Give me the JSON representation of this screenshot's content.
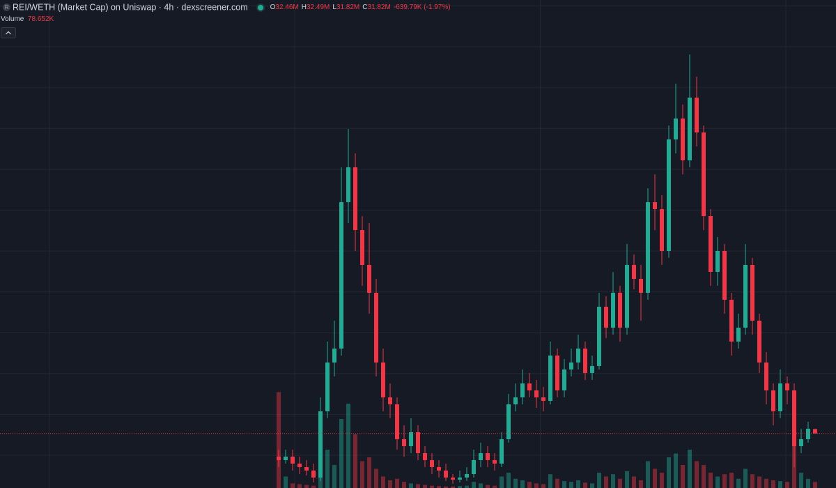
{
  "chart_data": {
    "type": "candlestick",
    "title": "REI/WETH (Market Cap) on Uniswap · 4h · dexscreener.com",
    "token_icon": "R",
    "ohlc_legend": [
      {
        "key": "O",
        "value": "32.46M"
      },
      {
        "key": "H",
        "value": "32.49M"
      },
      {
        "key": "L",
        "value": "31.82M"
      },
      {
        "key": "C",
        "value": "31.82M"
      }
    ],
    "change": "-639.79K (-1.97%)",
    "volume_title": "Volume",
    "volume_label": "78.652K",
    "open": [
      28.5,
      28,
      28.5,
      27.5,
      27,
      26.5,
      25.5,
      35,
      42,
      44,
      65,
      70,
      61,
      56,
      52,
      42,
      37,
      36,
      31,
      30,
      32,
      29,
      28,
      27,
      26.5,
      25.5,
      25.2,
      25.5,
      26,
      28,
      29,
      28,
      27.5,
      31,
      36,
      37,
      39,
      38,
      37,
      36.5,
      43,
      38,
      41,
      42,
      44,
      40.5,
      41.5,
      50,
      47,
      52,
      47,
      56,
      54,
      52,
      65,
      64,
      58,
      74,
      77,
      71,
      80,
      75,
      63,
      55,
      58,
      51,
      45,
      47,
      56,
      48,
      42,
      38,
      35,
      39,
      38,
      30,
      31,
      32.46
    ],
    "high": [
      29.5,
      29.5,
      29.5,
      28.5,
      28,
      27.5,
      37,
      45,
      48,
      70,
      75.5,
      72,
      63,
      62,
      54,
      44,
      39,
      37,
      33,
      34,
      33,
      30,
      29,
      28,
      27.5,
      26,
      26.5,
      27,
      29.5,
      30.5,
      30,
      29,
      32,
      37.5,
      39,
      41,
      40.5,
      39.5,
      38.5,
      45,
      44,
      42.5,
      44,
      46,
      45,
      43,
      52,
      51.5,
      55,
      53,
      59,
      57.5,
      56,
      67,
      69,
      66,
      76,
      82,
      79,
      86.2,
      83,
      76,
      64,
      60,
      59,
      52,
      49,
      59,
      57,
      49,
      43.5,
      39,
      41,
      40,
      39,
      32.5,
      33.5,
      32.49
    ],
    "low": [
      27,
      27.5,
      26.5,
      26,
      25.8,
      24.8,
      25,
      34,
      40,
      43,
      62,
      58,
      53,
      49,
      40,
      35,
      34,
      29.5,
      28.5,
      29,
      28,
      27,
      26,
      25.5,
      25,
      24.6,
      24.8,
      25,
      25.5,
      27,
      27,
      26.5,
      27,
      30.5,
      35,
      36,
      37,
      35.5,
      35,
      36,
      37,
      37,
      40,
      41,
      39.5,
      39.5,
      41,
      45.5,
      46,
      45,
      46,
      52.5,
      48,
      51,
      61,
      56,
      57,
      72,
      69,
      70,
      73,
      61,
      53,
      53,
      49,
      43,
      44,
      46,
      46,
      40.5,
      36,
      33,
      34,
      36,
      27,
      29,
      30.5,
      31.82
    ],
    "close": [
      28,
      28.5,
      27.5,
      27,
      26.5,
      25.5,
      35,
      42,
      44,
      65,
      70,
      61,
      56,
      52,
      42,
      37,
      36,
      31,
      30,
      32,
      29,
      28,
      27,
      26.5,
      25.5,
      25.2,
      25.5,
      26,
      28,
      29,
      28,
      27.5,
      31,
      36,
      37,
      39,
      38,
      37,
      36.5,
      43,
      38,
      41,
      42,
      44,
      40.5,
      41.5,
      50,
      47,
      52,
      47,
      56,
      54,
      52,
      65,
      64,
      58,
      74,
      77,
      71,
      80,
      75,
      63,
      55,
      58,
      51,
      45,
      47,
      56,
      48,
      42,
      38,
      35,
      39,
      38,
      30,
      31,
      32.5,
      31.82
    ],
    "volume": [
      1250000,
      150000,
      60000,
      50000,
      40000,
      30000,
      400000,
      500000,
      300000,
      900000,
      1100000,
      700000,
      350000,
      400000,
      250000,
      150000,
      100000,
      120000,
      80000,
      60000,
      50000,
      40000,
      30000,
      25000,
      20000,
      20000,
      25000,
      30000,
      80000,
      60000,
      40000,
      30000,
      150000,
      200000,
      120000,
      100000,
      80000,
      60000,
      50000,
      180000,
      120000,
      90000,
      80000,
      100000,
      70000,
      60000,
      200000,
      150000,
      180000,
      120000,
      220000,
      150000,
      100000,
      350000,
      250000,
      200000,
      400000,
      450000,
      300000,
      500000,
      350000,
      300000,
      200000,
      150000,
      180000,
      200000,
      120000,
      250000,
      180000,
      150000,
      120000,
      100000,
      90000,
      80000,
      1000000,
      200000,
      120000,
      78652
    ],
    "ylim": [
      24,
      94
    ],
    "vlim": [
      0,
      2000000
    ],
    "up_color": "#22ab94",
    "down_color": "#f23645",
    "grid": true
  }
}
